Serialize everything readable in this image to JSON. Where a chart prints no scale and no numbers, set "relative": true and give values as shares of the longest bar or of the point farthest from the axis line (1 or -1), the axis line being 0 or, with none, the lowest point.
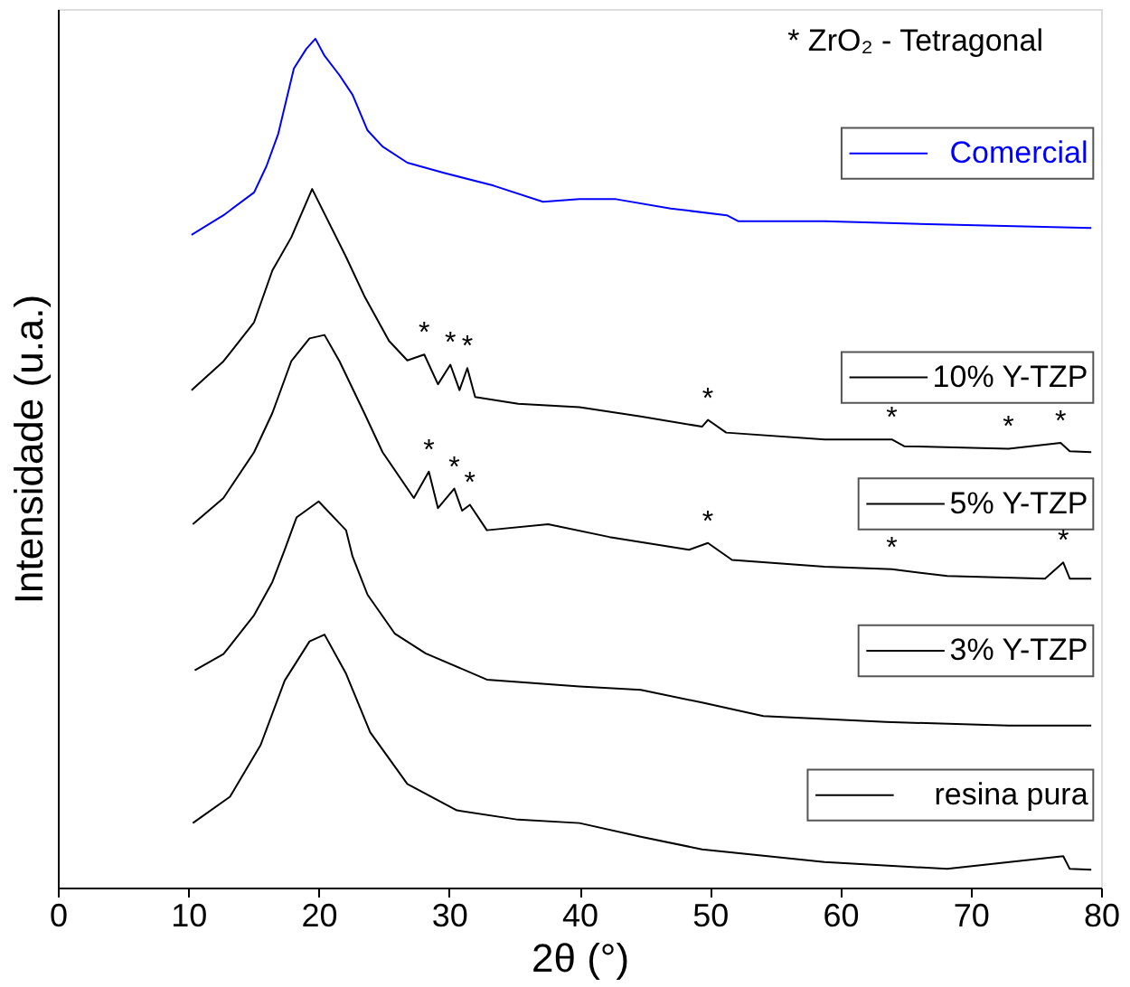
{
  "chart_data": {
    "type": "line",
    "relative": true,
    "xlabel": "2θ (°)",
    "ylabel": "Intensidade (u.a.)",
    "xlim": [
      0,
      80
    ],
    "xticks": [
      0,
      10,
      20,
      30,
      40,
      50,
      60,
      70,
      80
    ],
    "grid": false,
    "legend": "right",
    "marker": "none",
    "line_style": "solid",
    "series": [
      {
        "name": "Comercial",
        "color": "#0000ff",
        "x": [
          10.25,
          12.7,
          15.05,
          16.0,
          16.9,
          18.1,
          19.05,
          19.75,
          20.45,
          21.6,
          22.6,
          23.75,
          24.9,
          26.8,
          29.6,
          33.4,
          37.2,
          40.0,
          42.8,
          47.0,
          51.3,
          52.2,
          58.8,
          68.2,
          79.25
        ],
        "values": [
          0.769,
          0.792,
          0.819,
          0.85,
          0.888,
          0.965,
          0.988,
          1.0,
          0.98,
          0.957,
          0.934,
          0.892,
          0.873,
          0.854,
          0.842,
          0.827,
          0.808,
          0.811,
          0.811,
          0.8,
          0.792,
          0.785,
          0.785,
          0.781,
          0.777
        ]
      },
      {
        "name": "10% Y-TZP",
        "color": "#000000",
        "x": [
          10.25,
          12.7,
          15.05,
          16.45,
          17.9,
          19.5,
          22.1,
          23.5,
          25.4,
          26.8,
          28.1,
          29.15,
          30.1,
          30.8,
          31.4,
          32.0,
          35.3,
          40.0,
          44.7,
          49.4,
          49.85,
          51.25,
          58.8,
          63.95,
          64.9,
          72.9,
          76.9,
          77.6,
          79.25
        ],
        "values": [
          0.586,
          0.62,
          0.666,
          0.727,
          0.766,
          0.823,
          0.743,
          0.697,
          0.644,
          0.621,
          0.628,
          0.593,
          0.616,
          0.586,
          0.612,
          0.578,
          0.57,
          0.566,
          0.555,
          0.543,
          0.551,
          0.536,
          0.528,
          0.528,
          0.52,
          0.517,
          0.524,
          0.514,
          0.513
        ]
      },
      {
        "name": "5% Y-TZP",
        "color": "#000000",
        "x": [
          10.35,
          12.7,
          15.05,
          16.45,
          17.9,
          19.3,
          20.45,
          21.6,
          23.5,
          24.9,
          27.3,
          28.45,
          29.15,
          30.4,
          31.0,
          31.6,
          32.9,
          37.6,
          42.3,
          48.4,
          49.85,
          51.7,
          58.8,
          63.95,
          68.2,
          75.7,
          77.1,
          77.6,
          79.25
        ],
        "values": [
          0.428,
          0.459,
          0.513,
          0.559,
          0.62,
          0.647,
          0.651,
          0.62,
          0.559,
          0.513,
          0.459,
          0.49,
          0.447,
          0.47,
          0.444,
          0.451,
          0.421,
          0.428,
          0.413,
          0.398,
          0.406,
          0.386,
          0.378,
          0.375,
          0.367,
          0.364,
          0.383,
          0.364,
          0.364
        ]
      },
      {
        "name": "3% Y-TZP",
        "color": "#000000",
        "x": [
          10.5,
          12.7,
          15.05,
          16.45,
          17.4,
          18.3,
          20.0,
          22.1,
          22.6,
          23.75,
          25.85,
          28.2,
          32.9,
          40.0,
          44.7,
          49.4,
          54.1,
          63.5,
          72.9,
          79.25
        ],
        "values": [
          0.256,
          0.275,
          0.321,
          0.36,
          0.398,
          0.436,
          0.455,
          0.421,
          0.39,
          0.345,
          0.299,
          0.276,
          0.245,
          0.237,
          0.233,
          0.218,
          0.202,
          0.195,
          0.191,
          0.191
        ]
      },
      {
        "name": "resina pura",
        "color": "#000000",
        "x": [
          10.35,
          13.2,
          15.55,
          17.4,
          19.3,
          20.45,
          22.1,
          23.95,
          26.8,
          30.6,
          35.3,
          40.0,
          44.7,
          49.4,
          58.8,
          68.2,
          77.1,
          77.6,
          79.25
        ],
        "values": [
          0.076,
          0.107,
          0.168,
          0.244,
          0.29,
          0.298,
          0.252,
          0.183,
          0.122,
          0.091,
          0.08,
          0.076,
          0.06,
          0.045,
          0.03,
          0.022,
          0.037,
          0.022,
          0.021
        ]
      }
    ],
    "annotations": [
      "*   ZrO₂ - Tetragonal",
      {
        "text": "*",
        "x": 28.1,
        "y": 0.628
      },
      {
        "text": "*",
        "x": 30.1,
        "y": 0.616
      },
      {
        "text": "*",
        "x": 31.4,
        "y": 0.612
      },
      {
        "text": "*",
        "x": 49.85,
        "y": 0.551
      },
      {
        "text": "*",
        "x": 63.95,
        "y": 0.528
      },
      {
        "text": "*",
        "x": 72.9,
        "y": 0.517
      },
      {
        "text": "*",
        "x": 76.9,
        "y": 0.524
      },
      {
        "text": "*",
        "x": 28.45,
        "y": 0.49
      },
      {
        "text": "*",
        "x": 30.4,
        "y": 0.47
      },
      {
        "text": "*",
        "x": 31.6,
        "y": 0.451
      },
      {
        "text": "*",
        "x": 49.85,
        "y": 0.406
      },
      {
        "text": "*",
        "x": 63.95,
        "y": 0.375
      },
      {
        "text": "*",
        "x": 77.1,
        "y": 0.383
      }
    ]
  }
}
